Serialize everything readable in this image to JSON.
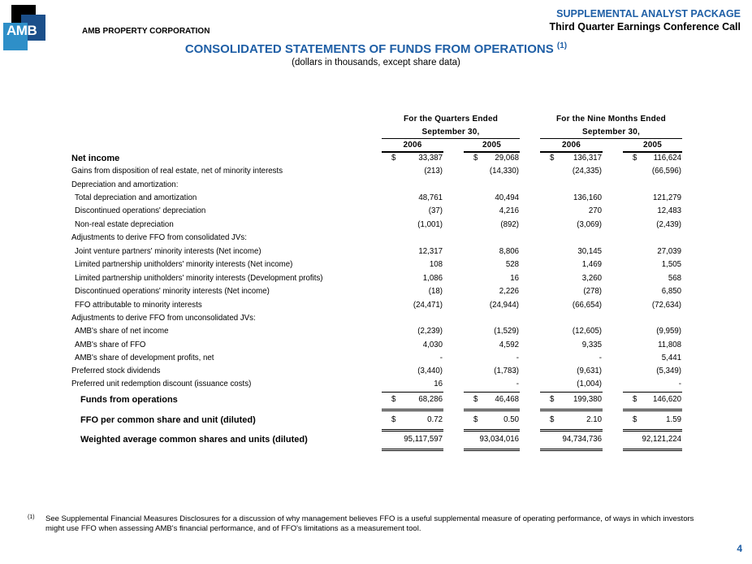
{
  "header": {
    "logo_text": "AMB",
    "company": "AMB PROPERTY CORPORATION",
    "package": "SUPPLEMENTAL ANALYST PACKAGE",
    "event": "Third Quarter Earnings Conference Call"
  },
  "title": "CONSOLIDATED STATEMENTS OF FUNDS FROM OPERATIONS",
  "title_note": "(1)",
  "subtitle": "(dollars in thousands, except share data)",
  "columns": {
    "group1": "For the Quarters Ended",
    "group1_sub": "September 30,",
    "group2": "For the Nine Months Ended",
    "group2_sub": "September 30,",
    "years": [
      "2006",
      "2005",
      "2006",
      "2005"
    ]
  },
  "rows": [
    {
      "label": "Net income",
      "style": "bold0",
      "dollar": true,
      "values": [
        "33,387",
        "29,068",
        "136,317",
        "116,624"
      ]
    },
    {
      "label": "Gains from disposition of real estate, net of minority interests",
      "values": [
        "(213)",
        "(14,330)",
        "(24,335)",
        "(66,596)"
      ]
    },
    {
      "label": "Depreciation and amortization:",
      "values": []
    },
    {
      "label": "Total depreciation and amortization",
      "indent": true,
      "values": [
        "48,761",
        "40,494",
        "136,160",
        "121,279"
      ]
    },
    {
      "label": "Discontinued operations' depreciation",
      "indent": true,
      "values": [
        "(37)",
        "4,216",
        "270",
        "12,483"
      ]
    },
    {
      "label": "Non-real estate depreciation",
      "indent": true,
      "values": [
        "(1,001)",
        "(892)",
        "(3,069)",
        "(2,439)"
      ]
    },
    {
      "label": "Adjustments to derive FFO from consolidated JVs:",
      "values": []
    },
    {
      "label": "Joint venture partners' minority interests (Net income)",
      "indent": true,
      "values": [
        "12,317",
        "8,806",
        "30,145",
        "27,039"
      ]
    },
    {
      "label": "Limited partnership unitholders' minority interests (Net income)",
      "indent": true,
      "values": [
        "108",
        "528",
        "1,469",
        "1,505"
      ]
    },
    {
      "label": "Limited partnership unitholders' minority interests (Development profits)",
      "indent": true,
      "values": [
        "1,086",
        "16",
        "3,260",
        "568"
      ]
    },
    {
      "label": "Discontinued operations' minority interests (Net income)",
      "indent": true,
      "values": [
        "(18)",
        "2,226",
        "(278)",
        "6,850"
      ]
    },
    {
      "label": "FFO attributable to minority interests",
      "indent": true,
      "values": [
        "(24,471)",
        "(24,944)",
        "(66,654)",
        "(72,634)"
      ]
    },
    {
      "label": "Adjustments to derive FFO from unconsolidated JVs:",
      "values": []
    },
    {
      "label": "AMB's share of net income",
      "indent": true,
      "values": [
        "(2,239)",
        "(1,529)",
        "(12,605)",
        "(9,959)"
      ]
    },
    {
      "label": "AMB's share of FFO",
      "indent": true,
      "values": [
        "4,030",
        "4,592",
        "9,335",
        "11,808"
      ]
    },
    {
      "label": "AMB's share of development profits, net",
      "indent": true,
      "values": [
        "-",
        "-",
        "-",
        "5,441"
      ]
    },
    {
      "label": "Preferred stock dividends",
      "values": [
        "(3,440)",
        "(1,783)",
        "(9,631)",
        "(5,349)"
      ]
    },
    {
      "label": "Preferred unit redemption discount (issuance costs)",
      "values": [
        "16",
        "-",
        "(1,004)",
        "-"
      ]
    },
    {
      "label": "Funds from operations",
      "style": "bold",
      "dollar": true,
      "values": [
        "68,286",
        "46,468",
        "199,380",
        "146,620"
      ]
    },
    {
      "label": "FFO per common share and unit (diluted)",
      "style": "bold",
      "dollar": true,
      "values": [
        "0.72",
        "0.50",
        "2.10",
        "1.59"
      ]
    },
    {
      "label": "Weighted average common shares and units (diluted)",
      "style": "bold",
      "values": [
        "95,117,597",
        "93,034,016",
        "94,734,736",
        "92,121,224"
      ]
    }
  ],
  "footnote": {
    "marker": "(1)",
    "text": "See Supplemental Financial Measures Disclosures for a discussion of why management believes FFO is a useful supplemental measure of operating performance, of ways in which investors might use FFO when assessing AMB's financial performance, and of FFO's limitations as a measurement tool."
  },
  "page_number": "4"
}
